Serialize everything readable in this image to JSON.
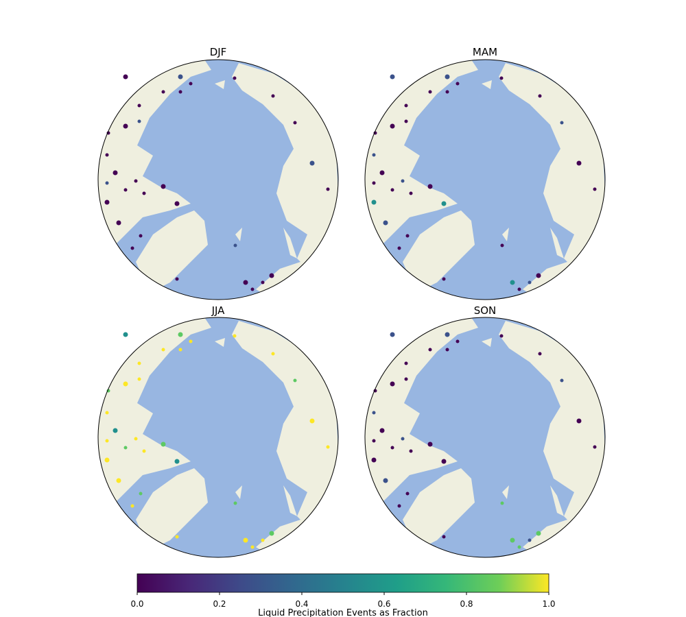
{
  "panels": [
    {
      "title": "DJF"
    },
    {
      "title": "MAM"
    },
    {
      "title": "JJA"
    },
    {
      "title": "SON"
    }
  ],
  "colorbar": {
    "label": "Liquid Precipitation Events as Fraction",
    "ticks": [
      "0.0",
      "0.2",
      "0.4",
      "0.6",
      "0.8",
      "1.0"
    ],
    "colormap": "viridis",
    "range": [
      0,
      1
    ]
  },
  "colors": {
    "ocean": "#98b6e1",
    "land": "#efefdf",
    "border": "#000000",
    "viridis_stops": [
      "#440154",
      "#3b528b",
      "#21908d",
      "#5dc963",
      "#fde725"
    ]
  }
}
